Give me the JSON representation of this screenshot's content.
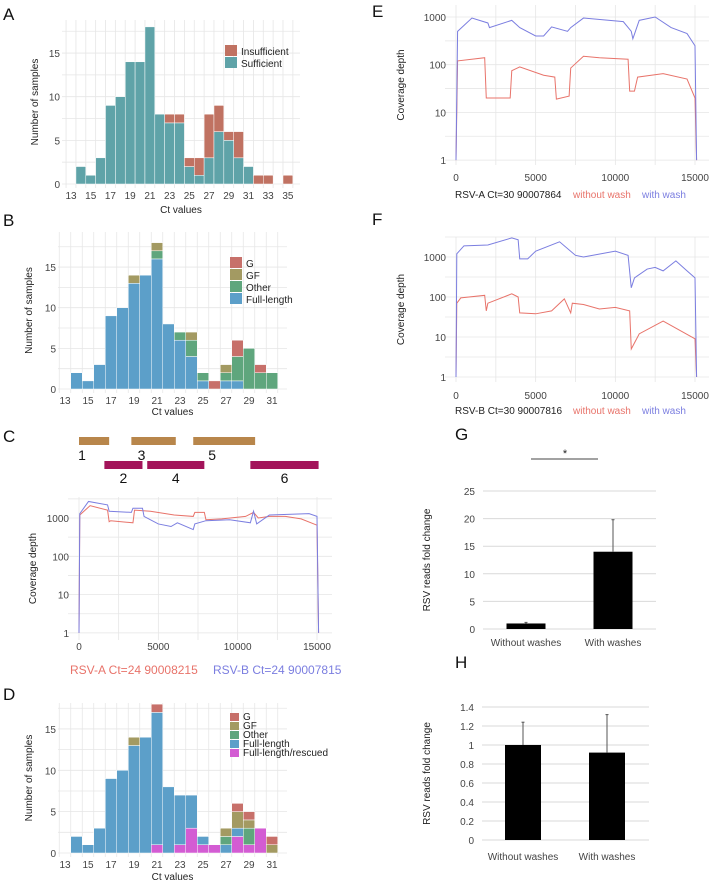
{
  "panels": {
    "A": "A",
    "B": "B",
    "C": "C",
    "D": "D",
    "E": "E",
    "F": "F",
    "G": "G",
    "H": "H"
  },
  "colors": {
    "insufficient": "#c07262",
    "sufficient": "#5fa3a8",
    "G": "#c7706a",
    "GF": "#a39a62",
    "Other": "#5fa67d",
    "Full-length": "#5c9fc9",
    "Full-length/rescued": "#d35cd3",
    "without_wash": "#e8736a",
    "with_wash": "#7b7ee0",
    "rsv_a": "#e8736a",
    "rsv_b": "#7b7ee0",
    "fragment_odd": "#b8864b",
    "fragment_even": "#a3145a",
    "bar": "#000000"
  },
  "fragments": {
    "odd": [
      {
        "label": "1",
        "start": 0,
        "end": 1900
      },
      {
        "label": "3",
        "start": 3300,
        "end": 6100
      },
      {
        "label": "5",
        "start": 7200,
        "end": 11100
      }
    ],
    "even": [
      {
        "label": "2",
        "start": 1600,
        "end": 4000
      },
      {
        "label": "4",
        "start": 4300,
        "end": 7900
      },
      {
        "label": "6",
        "start": 10800,
        "end": 15100
      }
    ]
  },
  "chart_data": [
    {
      "id": "A",
      "type": "bar",
      "stacked": true,
      "xlabel": "Ct values",
      "ylabel": "Number of samples",
      "categories": [
        14,
        15,
        16,
        17,
        18,
        19,
        20,
        21,
        22,
        23,
        24,
        25,
        26,
        27,
        28,
        29,
        30,
        31,
        32,
        33,
        34,
        35
      ],
      "series": [
        {
          "name": "Sufficient",
          "color_key": "sufficient",
          "values": [
            2,
            1,
            3,
            9,
            10,
            14,
            14,
            18,
            8,
            7,
            7,
            2,
            1,
            3,
            6,
            5,
            3,
            2,
            0,
            0,
            0,
            0
          ]
        },
        {
          "name": "Insufficient",
          "color_key": "insufficient",
          "values": [
            0,
            0,
            0,
            0,
            0,
            0,
            0,
            0,
            0,
            1,
            1,
            1,
            2,
            5,
            3,
            1,
            3,
            0,
            1,
            1,
            0,
            1
          ]
        }
      ],
      "legend_order": [
        "Insufficient",
        "Sufficient"
      ],
      "legend": "top-right",
      "xticks": [
        13,
        15,
        17,
        19,
        21,
        23,
        25,
        27,
        29,
        31,
        33,
        35
      ],
      "yticks": [
        0,
        5,
        10,
        15
      ],
      "grid": true
    },
    {
      "id": "B",
      "type": "bar",
      "stacked": true,
      "xlabel": "Ct values",
      "ylabel": "Number of samples",
      "categories": [
        14,
        15,
        16,
        17,
        18,
        19,
        20,
        21,
        22,
        23,
        24,
        25,
        26,
        27,
        28,
        29,
        30,
        31
      ],
      "series": [
        {
          "name": "Full-length",
          "color_key": "Full-length",
          "values": [
            2,
            1,
            3,
            9,
            10,
            13,
            14,
            16,
            8,
            6,
            4,
            1,
            0,
            1,
            1,
            0,
            0,
            0
          ]
        },
        {
          "name": "Other",
          "color_key": "Other",
          "values": [
            0,
            0,
            0,
            0,
            0,
            0,
            0,
            1,
            0,
            1,
            2,
            1,
            0,
            1,
            3,
            5,
            2,
            2
          ]
        },
        {
          "name": "GF",
          "color_key": "GF",
          "values": [
            0,
            0,
            0,
            0,
            0,
            1,
            0,
            1,
            0,
            0,
            1,
            0,
            0,
            1,
            0,
            0,
            0,
            0
          ]
        },
        {
          "name": "G",
          "color_key": "G",
          "values": [
            0,
            0,
            0,
            0,
            0,
            0,
            0,
            0,
            0,
            0,
            0,
            0,
            1,
            0,
            2,
            0,
            1,
            0
          ]
        }
      ],
      "legend_order": [
        "G",
        "GF",
        "Other",
        "Full-length"
      ],
      "legend": "top-right",
      "xticks": [
        13,
        15,
        17,
        19,
        21,
        23,
        25,
        27,
        29,
        31
      ],
      "yticks": [
        0,
        5,
        10,
        15
      ],
      "grid": true
    },
    {
      "id": "C",
      "type": "line",
      "ylog": true,
      "ylabel": "Coverage depth",
      "xlim": [
        0,
        15000
      ],
      "ylim": [
        1,
        3000
      ],
      "xticks": [
        0,
        5000,
        10000,
        15000
      ],
      "yticks": [
        1,
        10,
        100,
        1000
      ],
      "series": [
        {
          "name": "RSV-A Ct=24 90008215",
          "color_key": "rsv_a",
          "points": [
            [
              0,
              1
            ],
            [
              50,
              1200
            ],
            [
              700,
              2100
            ],
            [
              1800,
              1600
            ],
            [
              1900,
              800
            ],
            [
              2000,
              850
            ],
            [
              3400,
              750
            ],
            [
              3500,
              1600
            ],
            [
              4500,
              1500
            ],
            [
              6000,
              1200
            ],
            [
              7200,
              1100
            ],
            [
              7300,
              1400
            ],
            [
              7900,
              1400
            ],
            [
              8000,
              900
            ],
            [
              9000,
              950
            ],
            [
              10500,
              1100
            ],
            [
              11000,
              1400
            ],
            [
              11300,
              1000
            ],
            [
              12000,
              1100
            ],
            [
              13000,
              1100
            ],
            [
              14000,
              950
            ],
            [
              15000,
              650
            ],
            [
              15100,
              1
            ]
          ]
        },
        {
          "name": "RSV-B Ct=24 90007815",
          "color_key": "rsv_b",
          "points": [
            [
              0,
              1
            ],
            [
              50,
              1300
            ],
            [
              600,
              2700
            ],
            [
              1800,
              2200
            ],
            [
              1900,
              1500
            ],
            [
              3300,
              1400
            ],
            [
              3400,
              1800
            ],
            [
              4000,
              1800
            ],
            [
              4100,
              1100
            ],
            [
              5000,
              700
            ],
            [
              5800,
              600
            ],
            [
              6200,
              750
            ],
            [
              7200,
              500
            ],
            [
              7300,
              700
            ],
            [
              8000,
              850
            ],
            [
              9500,
              900
            ],
            [
              10800,
              750
            ],
            [
              11000,
              1500
            ],
            [
              11200,
              700
            ],
            [
              12000,
              1200
            ],
            [
              14500,
              1300
            ],
            [
              15000,
              1100
            ],
            [
              15100,
              1
            ]
          ]
        }
      ]
    },
    {
      "id": "D",
      "type": "bar",
      "stacked": true,
      "xlabel": "Ct values",
      "ylabel": "Number of samples",
      "categories": [
        14,
        15,
        16,
        17,
        18,
        19,
        20,
        21,
        22,
        23,
        24,
        25,
        26,
        27,
        28,
        29,
        30,
        31
      ],
      "series": [
        {
          "name": "Full-length/rescued",
          "color_key": "Full-length/rescued",
          "values": [
            0,
            0,
            0,
            0,
            0,
            0,
            0,
            1,
            0,
            1,
            3,
            1,
            1,
            0,
            2,
            1,
            3,
            0
          ]
        },
        {
          "name": "Full-length",
          "color_key": "Full-length",
          "values": [
            2,
            1,
            3,
            9,
            10,
            13,
            14,
            16,
            8,
            6,
            4,
            1,
            0,
            1,
            1,
            0,
            0,
            0
          ]
        },
        {
          "name": "Other",
          "color_key": "Other",
          "values": [
            0,
            0,
            0,
            0,
            0,
            0,
            0,
            0,
            0,
            0,
            0,
            0,
            0,
            1,
            0,
            2,
            0,
            0
          ]
        },
        {
          "name": "GF",
          "color_key": "GF",
          "values": [
            0,
            0,
            0,
            0,
            0,
            1,
            0,
            0,
            0,
            0,
            0,
            0,
            0,
            1,
            2,
            1,
            0,
            1
          ]
        },
        {
          "name": "G",
          "color_key": "G",
          "values": [
            0,
            0,
            0,
            0,
            0,
            0,
            0,
            1,
            0,
            0,
            0,
            0,
            0,
            0,
            1,
            1,
            0,
            1
          ]
        }
      ],
      "legend_order": [
        "G",
        "GF",
        "Other",
        "Full-length",
        "Full-length/rescued"
      ],
      "legend": "top-right",
      "xticks": [
        13,
        15,
        17,
        19,
        21,
        23,
        25,
        27,
        29,
        31
      ],
      "yticks": [
        0,
        5,
        10,
        15
      ],
      "grid": true
    },
    {
      "id": "E",
      "type": "line",
      "ylog": true,
      "ylabel": "Coverage depth",
      "caption": "RSV-A Ct=30 90007864",
      "xlim": [
        0,
        15000
      ],
      "ylim": [
        1,
        1000
      ],
      "xticks": [
        0,
        5000,
        10000,
        15000
      ],
      "yticks": [
        1,
        10,
        100,
        1000
      ],
      "series": [
        {
          "name": "without wash",
          "color_key": "without_wash",
          "points": [
            [
              0,
              1
            ],
            [
              100,
              120
            ],
            [
              1800,
              140
            ],
            [
              1900,
              20
            ],
            [
              3400,
              20
            ],
            [
              3500,
              75
            ],
            [
              4000,
              90
            ],
            [
              5500,
              60
            ],
            [
              6200,
              55
            ],
            [
              6300,
              19
            ],
            [
              7100,
              22
            ],
            [
              7200,
              85
            ],
            [
              8000,
              150
            ],
            [
              9000,
              140
            ],
            [
              10800,
              130
            ],
            [
              10900,
              28
            ],
            [
              11200,
              28
            ],
            [
              11400,
              55
            ],
            [
              13000,
              65
            ],
            [
              14500,
              50
            ],
            [
              15000,
              20
            ],
            [
              15100,
              1
            ]
          ]
        },
        {
          "name": "with wash",
          "color_key": "with_wash",
          "points": [
            [
              0,
              1
            ],
            [
              100,
              500
            ],
            [
              1000,
              950
            ],
            [
              2000,
              750
            ],
            [
              2100,
              600
            ],
            [
              3500,
              850
            ],
            [
              4000,
              600
            ],
            [
              5000,
              400
            ],
            [
              5500,
              400
            ],
            [
              6000,
              620
            ],
            [
              7000,
              500
            ],
            [
              7200,
              600
            ],
            [
              8000,
              950
            ],
            [
              10500,
              800
            ],
            [
              11000,
              500
            ],
            [
              11100,
              350
            ],
            [
              11500,
              850
            ],
            [
              12500,
              1000
            ],
            [
              13500,
              600
            ],
            [
              14500,
              450
            ],
            [
              15000,
              250
            ],
            [
              15100,
              1
            ]
          ]
        }
      ]
    },
    {
      "id": "F",
      "type": "line",
      "ylog": true,
      "ylabel": "Coverage depth",
      "caption": "RSV-B Ct=30 90007816",
      "xlim": [
        0,
        15000
      ],
      "ylim": [
        1,
        3000
      ],
      "xticks": [
        0,
        5000,
        10000,
        15000
      ],
      "yticks": [
        1,
        10,
        100,
        1000
      ],
      "series": [
        {
          "name": "without wash",
          "color_key": "without_wash",
          "points": [
            [
              0,
              1
            ],
            [
              50,
              70
            ],
            [
              300,
              95
            ],
            [
              1800,
              110
            ],
            [
              1900,
              45
            ],
            [
              2000,
              70
            ],
            [
              3500,
              120
            ],
            [
              3900,
              100
            ],
            [
              4000,
              40
            ],
            [
              5000,
              38
            ],
            [
              6000,
              45
            ],
            [
              6800,
              90
            ],
            [
              7200,
              40
            ],
            [
              7300,
              70
            ],
            [
              8000,
              65
            ],
            [
              9000,
              50
            ],
            [
              10000,
              55
            ],
            [
              10900,
              45
            ],
            [
              11000,
              5
            ],
            [
              11500,
              12
            ],
            [
              13000,
              25
            ],
            [
              14000,
              15
            ],
            [
              15000,
              9
            ],
            [
              15100,
              1
            ]
          ]
        },
        {
          "name": "with wash",
          "color_key": "with_wash",
          "points": [
            [
              0,
              1
            ],
            [
              50,
              1200
            ],
            [
              500,
              1900
            ],
            [
              2000,
              2000
            ],
            [
              3500,
              3000
            ],
            [
              3900,
              2700
            ],
            [
              4000,
              900
            ],
            [
              4500,
              900
            ],
            [
              5000,
              1400
            ],
            [
              6500,
              2400
            ],
            [
              7500,
              1100
            ],
            [
              8000,
              1000
            ],
            [
              10000,
              1400
            ],
            [
              10800,
              1100
            ],
            [
              11000,
              170
            ],
            [
              11200,
              300
            ],
            [
              12000,
              500
            ],
            [
              12500,
              550
            ],
            [
              13000,
              450
            ],
            [
              13800,
              800
            ],
            [
              14500,
              450
            ],
            [
              15000,
              300
            ],
            [
              15100,
              1
            ]
          ]
        }
      ]
    },
    {
      "id": "G",
      "type": "bar",
      "ylabel": "RSV reads fold change",
      "categories": [
        "Without washes",
        "With washes"
      ],
      "values": [
        1,
        14
      ],
      "error": [
        0.2,
        5.8
      ],
      "ylim": [
        0,
        25
      ],
      "yticks": [
        0,
        5,
        10,
        15,
        20,
        25
      ],
      "significance": "*"
    },
    {
      "id": "H",
      "type": "bar",
      "ylabel": "RSV reads fold change",
      "categories": [
        "Without washes",
        "With washes"
      ],
      "values": [
        1,
        0.92
      ],
      "error": [
        0.24,
        0.4
      ],
      "ylim": [
        0,
        1.4
      ],
      "yticks": [
        "0",
        "0.2",
        "0.4",
        "0.6",
        "0.8",
        "1",
        "1.2",
        "1.4"
      ]
    }
  ]
}
